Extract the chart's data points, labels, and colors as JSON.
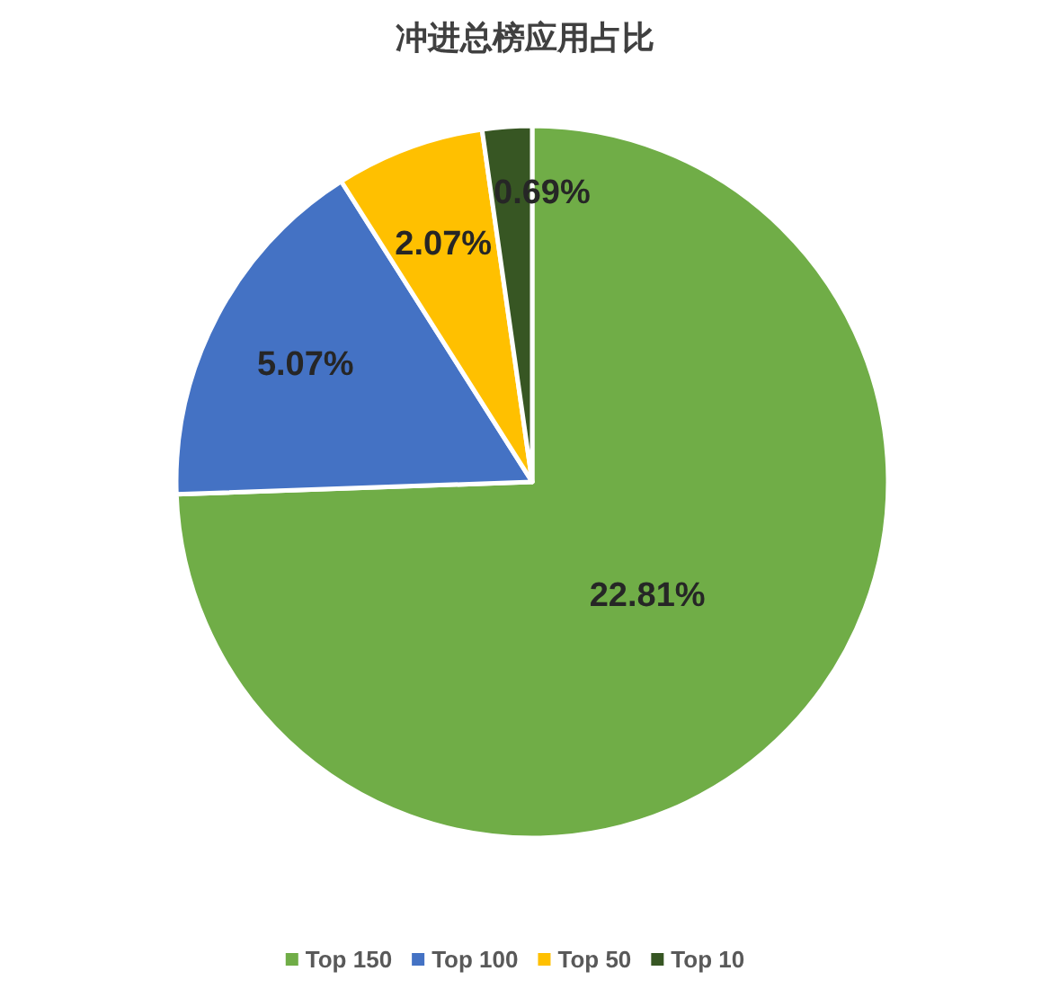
{
  "chart_data": {
    "type": "pie",
    "title": "冲进总榜应用占比",
    "categories": [
      "Top 150",
      "Top 100",
      "Top 50",
      "Top 10"
    ],
    "values": [
      22.81,
      5.07,
      2.07,
      0.69
    ],
    "colors": [
      "#70ad47",
      "#4472c4",
      "#ffc000",
      "#375623"
    ],
    "value_labels": [
      "22.81%",
      "5.07%",
      "2.07%",
      "0.69%"
    ],
    "legend": "bottom"
  }
}
